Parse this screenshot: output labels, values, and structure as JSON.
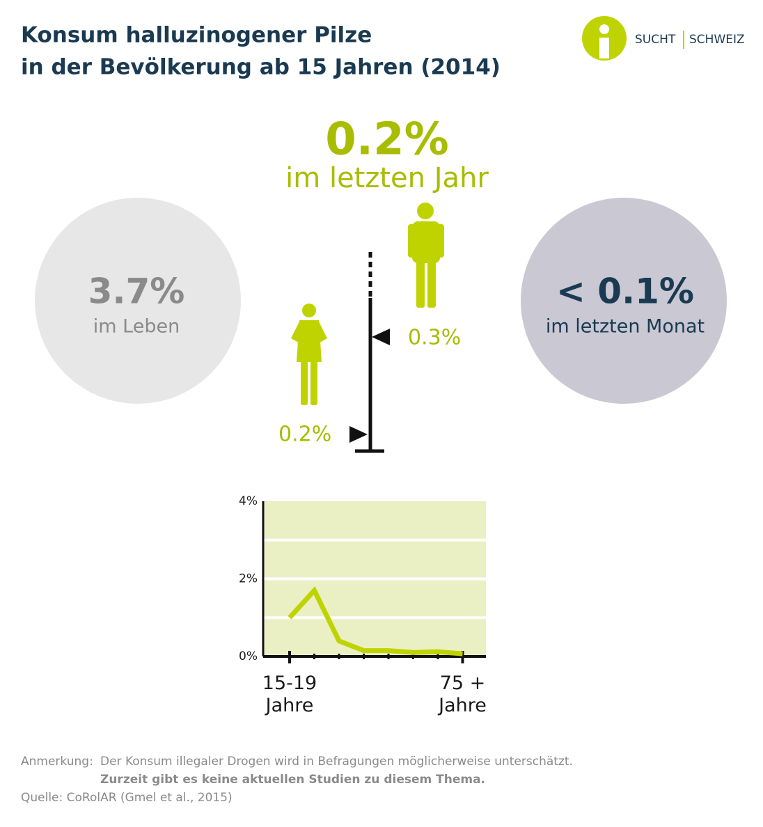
{
  "header": {
    "title": [
      "Konsum halluzinogener Pilze",
      "in der Bevölkerung ab 15 Jahren (2014)"
    ],
    "logo": [
      "SUCHT",
      "SCHWEIZ"
    ]
  },
  "stats": {
    "year": {
      "value": "0.2%",
      "label": "im letzten Jahr"
    },
    "lifetime": {
      "value": "3.7%",
      "label": "im Leben"
    },
    "month": {
      "value": "< 0.1%",
      "label": "im letzten Monat"
    },
    "women": "0.2%",
    "men": "0.3%"
  },
  "chart_data": {
    "type": "line",
    "categories": [
      "15-19\nJahre",
      null,
      null,
      null,
      null,
      null,
      null,
      "75 +\nJahre"
    ],
    "series": [
      {
        "color": "#bfd300",
        "values": [
          1.0,
          1.7,
          0.4,
          0.15,
          0.15,
          0.1,
          0.12,
          0.07
        ]
      }
    ],
    "ylim": [
      0,
      4
    ],
    "yticks": [
      {
        "value": 0,
        "label": "0%"
      },
      {
        "value": 2,
        "label": "2%"
      },
      {
        "value": 4,
        "label": "4%"
      }
    ],
    "grid_lines": [
      1,
      2,
      3
    ]
  },
  "notes": {
    "label": "Anmerkung:",
    "text": "Der Konsum illegaler Drogen wird in Befragungen möglicherweise unterschätzt.",
    "bold": "Zurzeit gibt es keine aktuellen Studien zu diesem Thema.",
    "source": "Quelle: CoRolAR (Gmel et al., 2015)"
  }
}
